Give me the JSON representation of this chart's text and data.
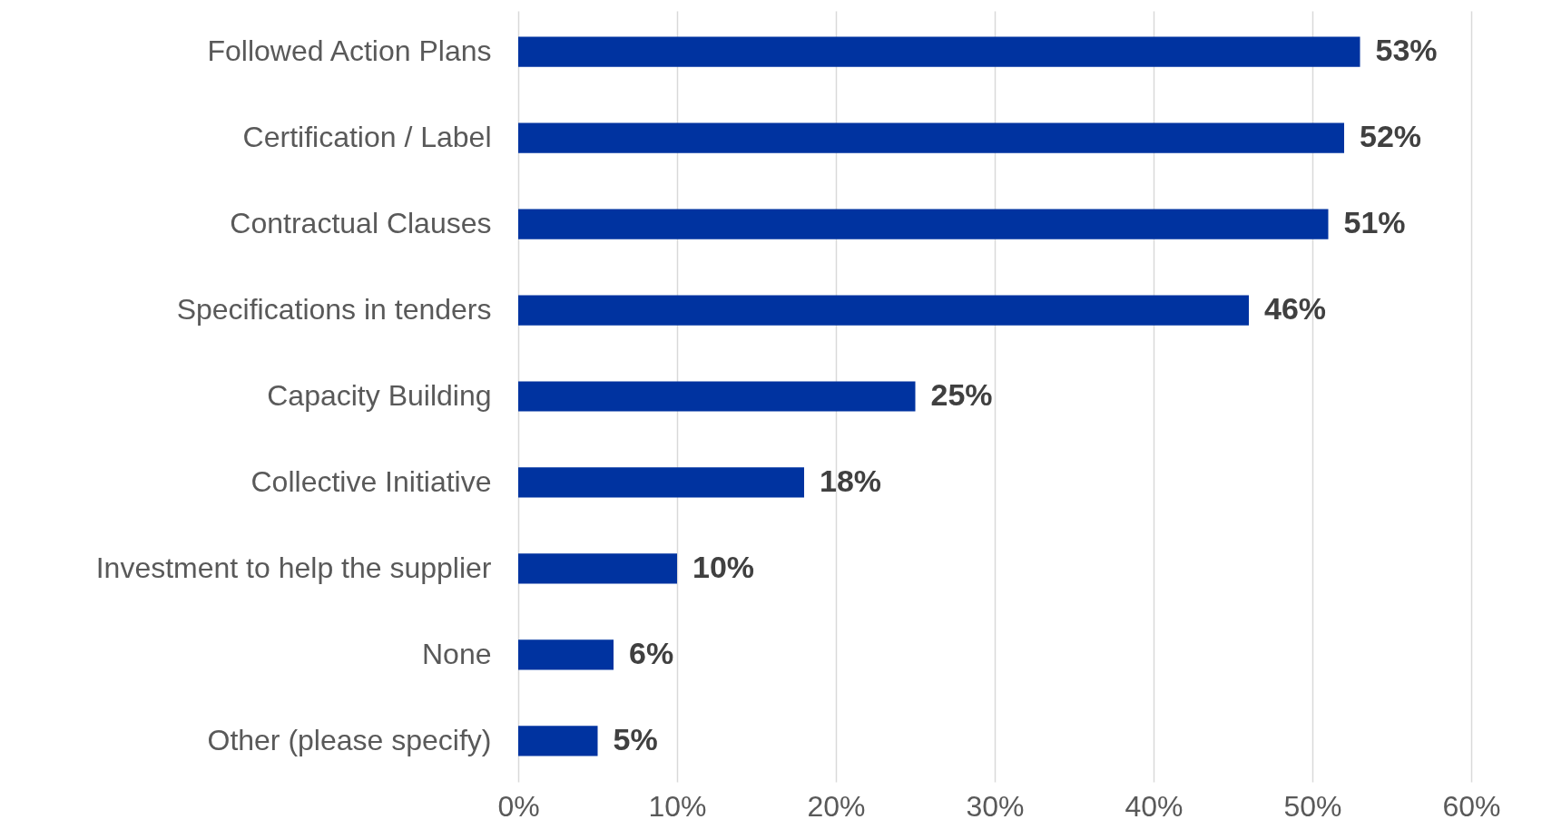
{
  "chart_data": {
    "type": "bar",
    "orientation": "horizontal",
    "categories": [
      "Followed Action Plans",
      "Certification / Label",
      "Contractual Clauses",
      "Specifications in tenders",
      "Capacity Building",
      "Collective Initiative",
      "Investment to help the supplier",
      "None",
      "Other (please specify)"
    ],
    "values": [
      53,
      52,
      51,
      46,
      25,
      18,
      10,
      6,
      5
    ],
    "value_labels": [
      "53%",
      "52%",
      "51%",
      "46%",
      "25%",
      "18%",
      "10%",
      "6%",
      "5%"
    ],
    "color": "#0033a0",
    "xlim": [
      0,
      60
    ],
    "xticks": [
      {
        "value": 0,
        "label": "0%"
      },
      {
        "value": 10,
        "label": "10%"
      },
      {
        "value": 20,
        "label": "20%"
      },
      {
        "value": 30,
        "label": "30%"
      },
      {
        "value": 40,
        "label": "40%"
      },
      {
        "value": 50,
        "label": "50%"
      },
      {
        "value": 60,
        "label": "60%"
      }
    ],
    "grid": "x"
  }
}
